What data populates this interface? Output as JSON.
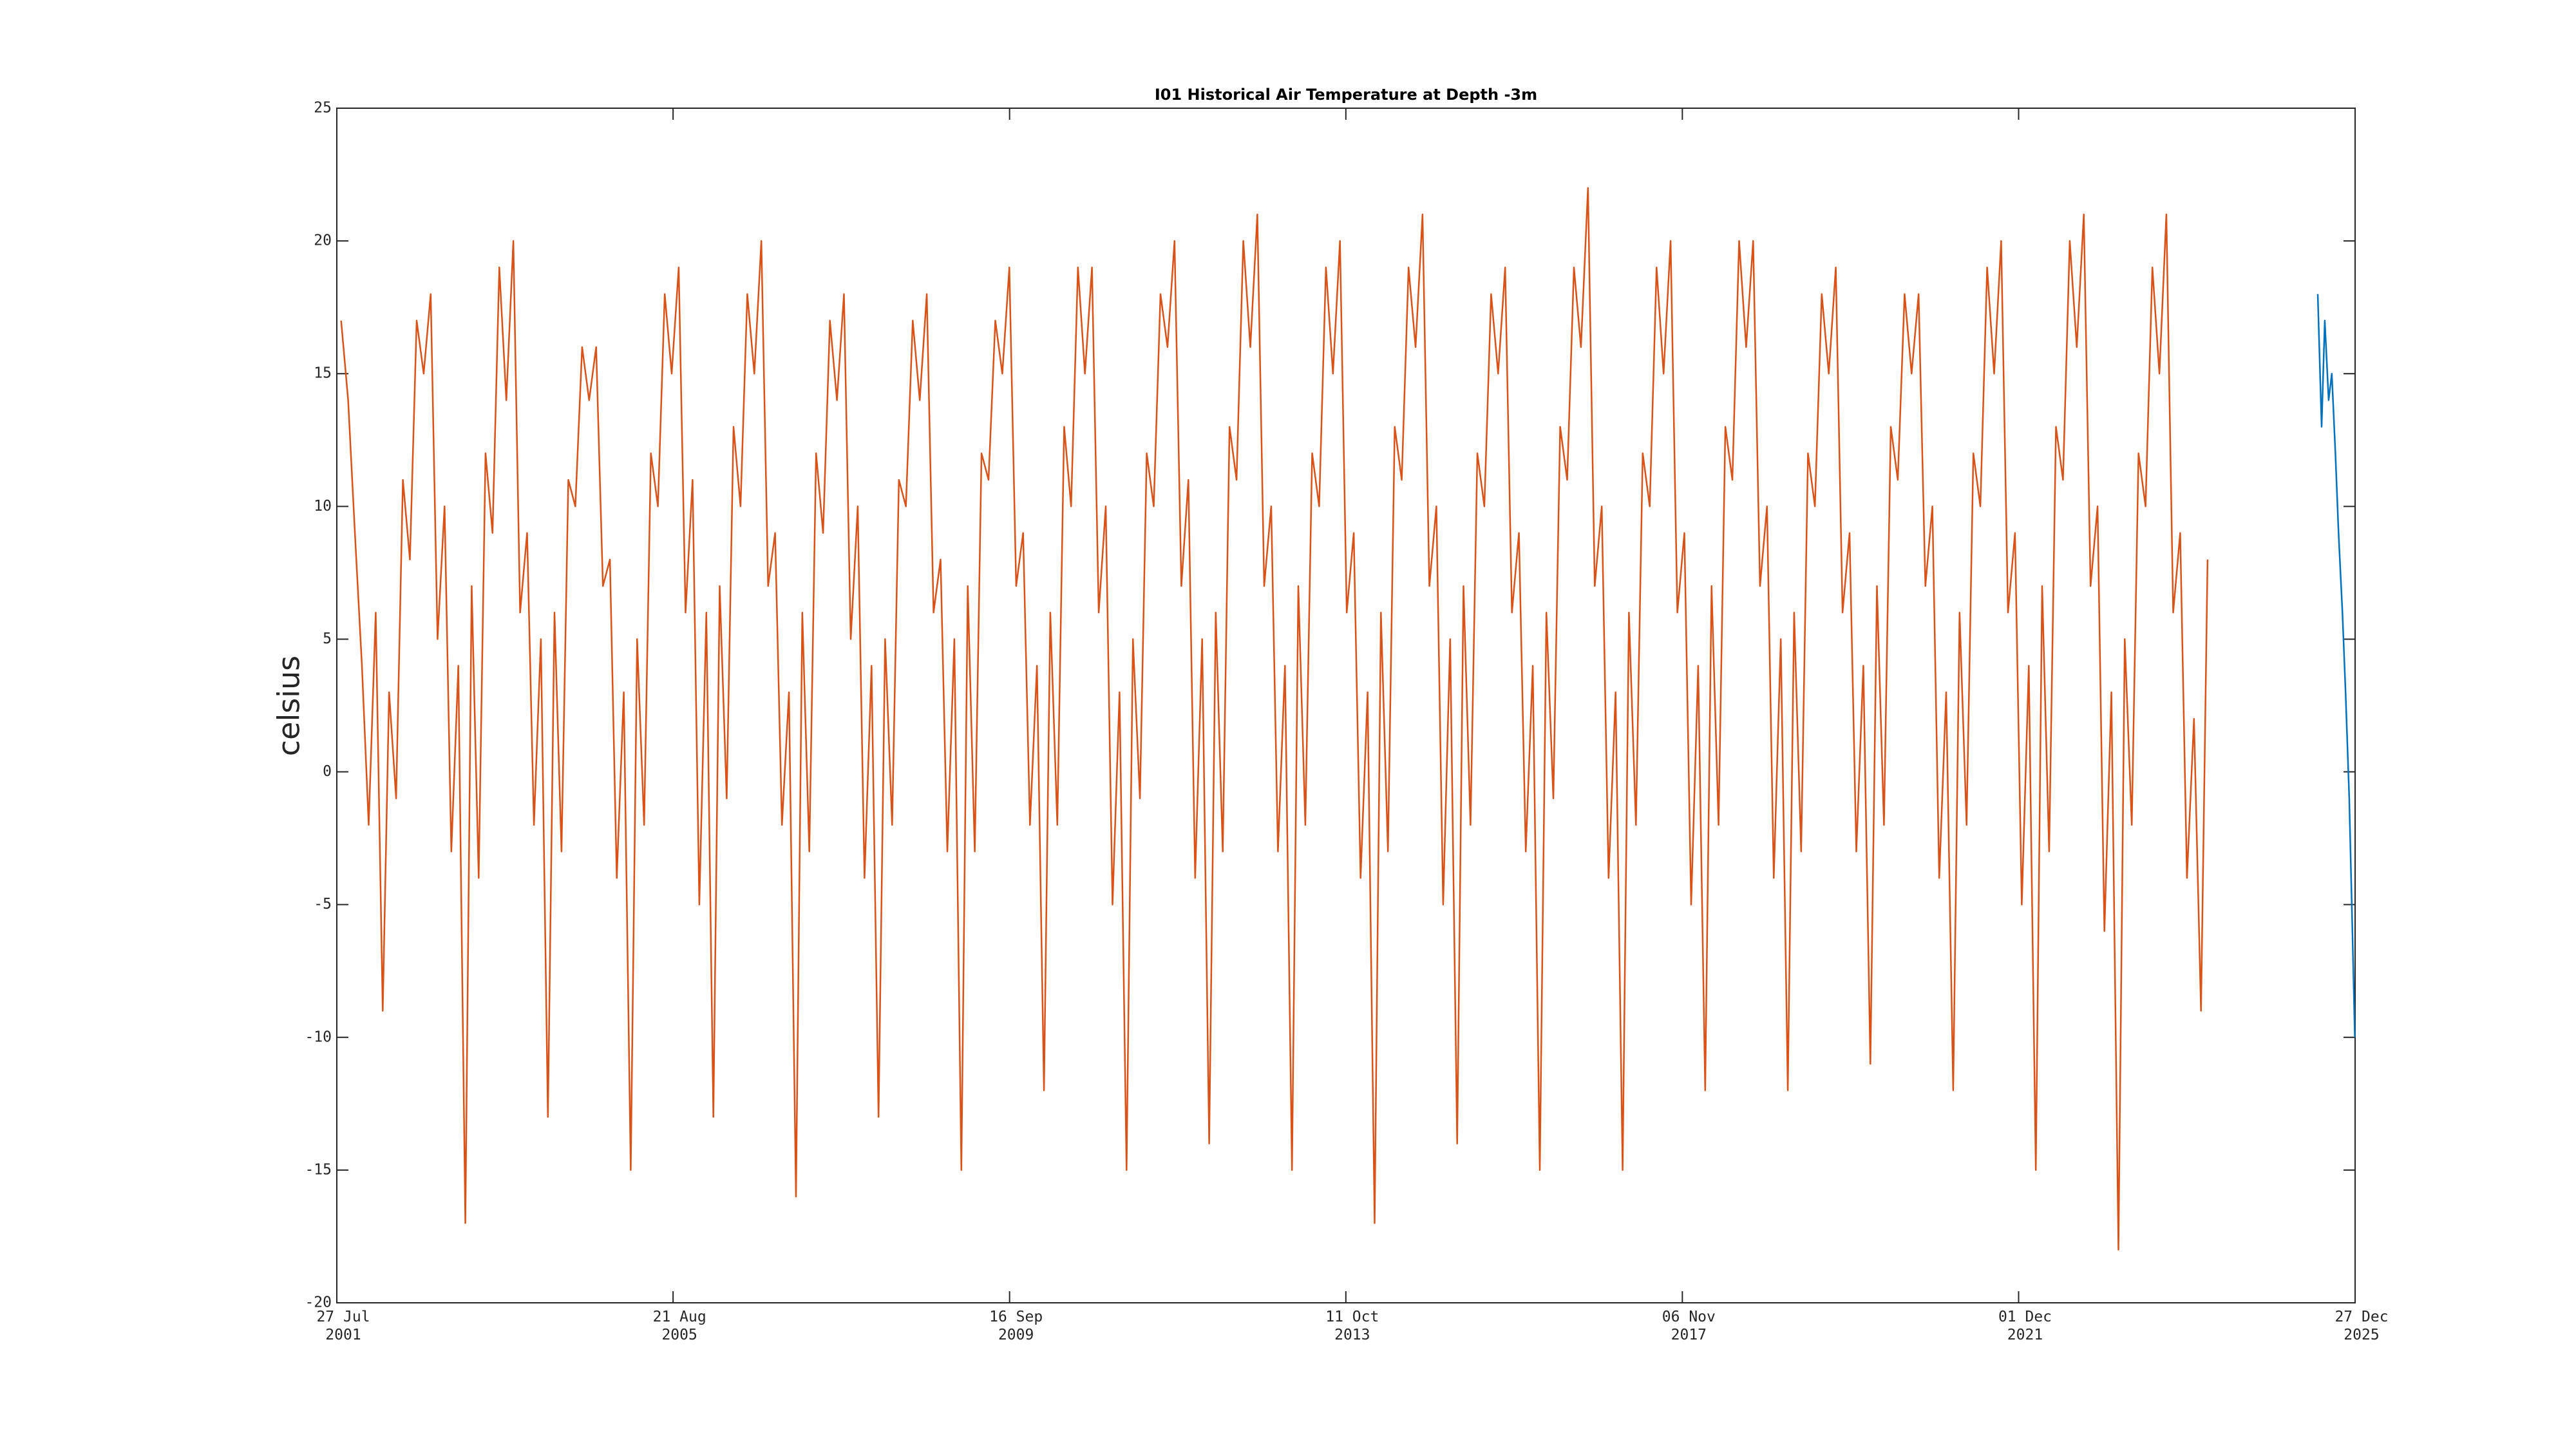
{
  "chart_data": {
    "type": "line",
    "title": "I01 Historical Air Temperature at Depth -3m",
    "y_label": "celsius",
    "xlim": [
      "2001-07-27",
      "2025-12-27"
    ],
    "xticks": [
      {
        "value": "2001-07-27",
        "label": "27 Jul\n2001"
      },
      {
        "value": "2005-08-21",
        "label": "21 Aug\n2005"
      },
      {
        "value": "2009-09-16",
        "label": "16 Sep\n2009"
      },
      {
        "value": "2013-10-11",
        "label": "11 Oct\n2013"
      },
      {
        "value": "2017-11-06",
        "label": "06 Nov\n2017"
      },
      {
        "value": "2021-12-01",
        "label": "01 Dec\n2021"
      },
      {
        "value": "2025-12-27",
        "label": "27 Dec\n2025"
      }
    ],
    "ylim": [
      -20,
      25
    ],
    "yticks": [
      -20,
      -15,
      -10,
      -5,
      0,
      5,
      10,
      15,
      20,
      25
    ],
    "grid": false,
    "series": [
      {
        "color": "#d95319",
        "x": [
          "2001-08-15",
          "2001-09-15",
          "2001-10-15",
          "2001-11-15",
          "2001-12-15",
          "2002-01-15",
          "2002-02-15",
          "2002-03-15",
          "2002-04-15",
          "2002-05-15",
          "2002-06-15",
          "2002-07-15",
          "2002-08-15",
          "2002-09-15",
          "2002-10-15",
          "2002-11-15",
          "2002-12-15",
          "2003-01-15",
          "2003-02-15",
          "2003-03-15",
          "2003-04-15",
          "2003-05-15",
          "2003-06-15",
          "2003-07-15",
          "2003-08-15",
          "2003-09-15",
          "2003-10-15",
          "2003-11-15",
          "2003-12-15",
          "2004-01-15",
          "2004-02-15",
          "2004-03-15",
          "2004-04-15",
          "2004-05-15",
          "2004-06-15",
          "2004-07-15",
          "2004-08-15",
          "2004-09-15",
          "2004-10-15",
          "2004-11-15",
          "2004-12-15",
          "2005-01-15",
          "2005-02-15",
          "2005-03-15",
          "2005-04-15",
          "2005-05-15",
          "2005-06-15",
          "2005-07-15",
          "2005-08-15",
          "2005-09-15",
          "2005-10-15",
          "2005-11-15",
          "2005-12-15",
          "2006-01-15",
          "2006-02-15",
          "2006-03-15",
          "2006-04-15",
          "2006-05-15",
          "2006-06-15",
          "2006-07-15",
          "2006-08-15",
          "2006-09-15",
          "2006-10-15",
          "2006-11-15",
          "2006-12-15",
          "2007-01-15",
          "2007-02-15",
          "2007-03-15",
          "2007-04-15",
          "2007-05-15",
          "2007-06-15",
          "2007-07-15",
          "2007-08-15",
          "2007-09-15",
          "2007-10-15",
          "2007-11-15",
          "2007-12-15",
          "2008-01-15",
          "2008-02-15",
          "2008-03-15",
          "2008-04-15",
          "2008-05-15",
          "2008-06-15",
          "2008-07-15",
          "2008-08-15",
          "2008-09-15",
          "2008-10-15",
          "2008-11-15",
          "2008-12-15",
          "2009-01-15",
          "2009-02-15",
          "2009-03-15",
          "2009-04-15",
          "2009-05-15",
          "2009-06-15",
          "2009-07-15",
          "2009-08-15",
          "2009-09-15",
          "2009-10-15",
          "2009-11-15",
          "2009-12-15",
          "2010-01-15",
          "2010-02-15",
          "2010-03-15",
          "2010-04-15",
          "2010-05-15",
          "2010-06-15",
          "2010-07-15",
          "2010-08-15",
          "2010-09-15",
          "2010-10-15",
          "2010-11-15",
          "2010-12-15",
          "2011-01-15",
          "2011-02-15",
          "2011-03-15",
          "2011-04-15",
          "2011-05-15",
          "2011-06-15",
          "2011-07-15",
          "2011-08-15",
          "2011-09-15",
          "2011-10-15",
          "2011-11-15",
          "2011-12-15",
          "2012-01-15",
          "2012-02-15",
          "2012-03-15",
          "2012-04-15",
          "2012-05-15",
          "2012-06-15",
          "2012-07-15",
          "2012-08-15",
          "2012-09-15",
          "2012-10-15",
          "2012-11-15",
          "2012-12-15",
          "2013-01-15",
          "2013-02-15",
          "2013-03-15",
          "2013-04-15",
          "2013-05-15",
          "2013-06-15",
          "2013-07-15",
          "2013-08-15",
          "2013-09-15",
          "2013-10-15",
          "2013-11-15",
          "2013-12-15",
          "2014-01-15",
          "2014-02-15",
          "2014-03-15",
          "2014-04-15",
          "2014-05-15",
          "2014-06-15",
          "2014-07-15",
          "2014-08-15",
          "2014-09-15",
          "2014-10-15",
          "2014-11-15",
          "2014-12-15",
          "2015-01-15",
          "2015-02-15",
          "2015-03-15",
          "2015-04-15",
          "2015-05-15",
          "2015-06-15",
          "2015-07-15",
          "2015-08-15",
          "2015-09-15",
          "2015-10-15",
          "2015-11-15",
          "2015-12-15",
          "2016-01-15",
          "2016-02-15",
          "2016-03-15",
          "2016-04-15",
          "2016-05-15",
          "2016-06-15",
          "2016-07-15",
          "2016-08-15",
          "2016-09-15",
          "2016-10-15",
          "2016-11-15",
          "2016-12-15",
          "2017-01-15",
          "2017-02-15",
          "2017-03-15",
          "2017-04-15",
          "2017-05-15",
          "2017-06-15",
          "2017-07-15",
          "2017-08-15",
          "2017-09-15",
          "2017-10-15",
          "2017-11-15",
          "2017-12-15",
          "2018-01-15",
          "2018-02-15",
          "2018-03-15",
          "2018-04-15",
          "2018-05-15",
          "2018-06-15",
          "2018-07-15",
          "2018-08-15",
          "2018-09-15",
          "2018-10-15",
          "2018-11-15",
          "2018-12-15",
          "2019-01-15",
          "2019-02-15",
          "2019-03-15",
          "2019-04-15",
          "2019-05-15",
          "2019-06-15",
          "2019-07-15",
          "2019-08-15",
          "2019-09-15",
          "2019-10-15",
          "2019-11-15",
          "2019-12-15",
          "2020-01-15",
          "2020-02-15",
          "2020-03-15",
          "2020-04-15",
          "2020-05-15",
          "2020-06-15",
          "2020-07-15",
          "2020-08-15",
          "2020-09-15",
          "2020-10-15",
          "2020-11-15",
          "2020-12-15",
          "2021-01-15",
          "2021-02-15",
          "2021-03-15",
          "2021-04-15",
          "2021-05-15",
          "2021-06-15",
          "2021-07-15",
          "2021-08-15",
          "2021-09-15",
          "2021-10-15",
          "2021-11-15",
          "2021-12-15",
          "2022-01-15",
          "2022-02-15",
          "2022-03-15",
          "2022-04-15",
          "2022-05-15",
          "2022-06-15",
          "2022-07-15",
          "2022-08-15",
          "2022-09-15",
          "2022-10-15",
          "2022-11-15",
          "2022-12-15",
          "2023-01-15",
          "2023-02-15",
          "2023-03-15",
          "2023-04-15",
          "2023-05-15",
          "2023-06-15",
          "2023-07-15",
          "2023-08-15",
          "2023-09-15",
          "2023-10-15",
          "2023-11-15",
          "2023-12-15",
          "2024-01-15",
          "2024-02-15",
          "2024-03-15"
        ],
        "values": [
          17,
          14,
          9,
          4,
          -2,
          6,
          -9,
          3,
          -1,
          11,
          8,
          17,
          15,
          18,
          5,
          10,
          -3,
          4,
          -17,
          7,
          -4,
          12,
          9,
          19,
          14,
          20,
          6,
          9,
          -2,
          5,
          -13,
          6,
          -3,
          11,
          10,
          16,
          14,
          16,
          7,
          8,
          -4,
          3,
          -15,
          5,
          -2,
          12,
          10,
          18,
          15,
          19,
          6,
          11,
          -5,
          6,
          -13,
          7,
          -1,
          13,
          10,
          18,
          15,
          20,
          7,
          9,
          -2,
          3,
          -16,
          6,
          -3,
          12,
          9,
          17,
          14,
          18,
          5,
          10,
          -4,
          4,
          -13,
          5,
          -2,
          11,
          10,
          17,
          14,
          18,
          6,
          8,
          -3,
          5,
          -15,
          7,
          -3,
          12,
          11,
          17,
          15,
          19,
          7,
          9,
          -2,
          4,
          -12,
          6,
          -2,
          13,
          10,
          19,
          15,
          19,
          6,
          10,
          -5,
          3,
          -15,
          5,
          -1,
          12,
          10,
          18,
          16,
          20,
          7,
          11,
          -4,
          5,
          -14,
          6,
          -3,
          13,
          11,
          20,
          16,
          21,
          7,
          10,
          -3,
          4,
          -15,
          7,
          -2,
          12,
          10,
          19,
          15,
          20,
          6,
          9,
          -4,
          3,
          -17,
          6,
          -3,
          13,
          11,
          19,
          16,
          21,
          7,
          10,
          -5,
          5,
          -14,
          7,
          -2,
          12,
          10,
          18,
          15,
          19,
          6,
          9,
          -3,
          4,
          -15,
          6,
          -1,
          13,
          11,
          19,
          16,
          22,
          7,
          10,
          -4,
          3,
          -15,
          6,
          -2,
          12,
          10,
          19,
          15,
          20,
          6,
          9,
          -5,
          4,
          -12,
          7,
          -2,
          13,
          11,
          20,
          16,
          20,
          7,
          10,
          -4,
          5,
          -12,
          6,
          -3,
          12,
          10,
          18,
          15,
          19,
          6,
          9,
          -3,
          4,
          -11,
          7,
          -2,
          13,
          11,
          18,
          15,
          18,
          7,
          10,
          -4,
          3,
          -12,
          6,
          -2,
          12,
          10,
          19,
          15,
          20,
          6,
          9,
          -5,
          4,
          -15,
          7,
          -3,
          13,
          11,
          20,
          16,
          21,
          7,
          10,
          -6,
          3,
          -18,
          5,
          -2,
          12,
          10,
          19,
          15,
          21,
          6,
          9,
          -4,
          2,
          -9,
          8
        ]
      },
      {
        "color": "#0072bd",
        "x": [
          "2025-07-15",
          "2025-08-01",
          "2025-08-15",
          "2025-09-01",
          "2025-09-15",
          "2025-10-01",
          "2025-10-15",
          "2025-11-01",
          "2025-11-15",
          "2025-12-01",
          "2025-12-15",
          "2025-12-26"
        ],
        "values": [
          18,
          13,
          17,
          14,
          15,
          12,
          9,
          6,
          3,
          -1,
          -6,
          -10
        ]
      }
    ]
  }
}
